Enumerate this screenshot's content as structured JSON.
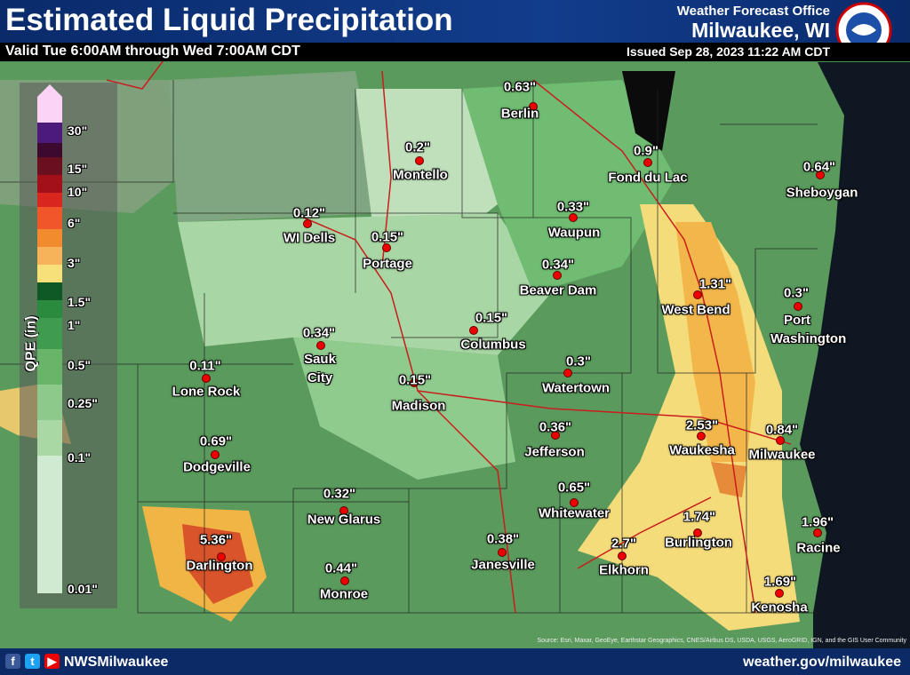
{
  "header": {
    "title": "Estimated Liquid Precipitation",
    "subtitle": "Valid Tue 6:00AM through Wed 7:00AM CDT",
    "office": "Weather Forecast Office",
    "city": "Milwaukee, WI",
    "issued": "Issued Sep 28, 2023 11:22 AM CDT"
  },
  "legend": {
    "title": "QPE (in)",
    "labels": [
      "30\"",
      "15\"",
      "10\"",
      "6\"",
      "3\"",
      "1.5\"",
      "1\"",
      "0.5\"",
      "0.25\"",
      "0.1\"",
      "0.01\""
    ]
  },
  "stations": [
    {
      "amount": "0.63\"",
      "name": "Berlin"
    },
    {
      "amount": "0.2\"",
      "name": "Montello"
    },
    {
      "amount": "0.9\"",
      "name": "Fond du Lac"
    },
    {
      "amount": "0.64\"",
      "name": "Sheboygan"
    },
    {
      "amount": "0.33\"",
      "name": "Waupun"
    },
    {
      "amount": "0.12\"",
      "name": "WI Dells"
    },
    {
      "amount": "0.15\"",
      "name": "Portage"
    },
    {
      "amount": "0.34\"",
      "name": "Beaver Dam"
    },
    {
      "amount": "1.31\"",
      "name": "West Bend"
    },
    {
      "amount": "0.3\"",
      "name": "Port Washington"
    },
    {
      "amount": "0.15\"",
      "name": "Columbus"
    },
    {
      "amount": "0.34\"",
      "name": "Sauk City"
    },
    {
      "amount": "0.11\"",
      "name": "Lone Rock"
    },
    {
      "amount": "0.3\"",
      "name": "Watertown"
    },
    {
      "amount": "0.15\"",
      "name": "Madison"
    },
    {
      "amount": "0.36\"",
      "name": "Jefferson"
    },
    {
      "amount": "2.53\"",
      "name": "Waukesha"
    },
    {
      "amount": "0.84\"",
      "name": "Milwaukee"
    },
    {
      "amount": "0.69\"",
      "name": "Dodgeville"
    },
    {
      "amount": "0.65\"",
      "name": "Whitewater"
    },
    {
      "amount": "0.32\"",
      "name": "New Glarus"
    },
    {
      "amount": "1.74\"",
      "name": "Burlington"
    },
    {
      "amount": "1.96\"",
      "name": "Racine"
    },
    {
      "amount": "5.36\"",
      "name": "Darlington"
    },
    {
      "amount": "2.7\"",
      "name": "Elkhorn"
    },
    {
      "amount": "0.38\"",
      "name": "Janesville"
    },
    {
      "amount": "0.44\"",
      "name": "Monroe"
    },
    {
      "amount": "1.69\"",
      "name": "Kenosha"
    }
  ],
  "attribution": "Source: Esri, Maxar, GeoEye, Earthstar Geographics, CNES/Airbus DS, USDA, USGS, AeroGRID, IGN, and the GIS User Community",
  "footer": {
    "social": "NWSMilwaukee",
    "website": "weather.gov/milwaukee"
  }
}
